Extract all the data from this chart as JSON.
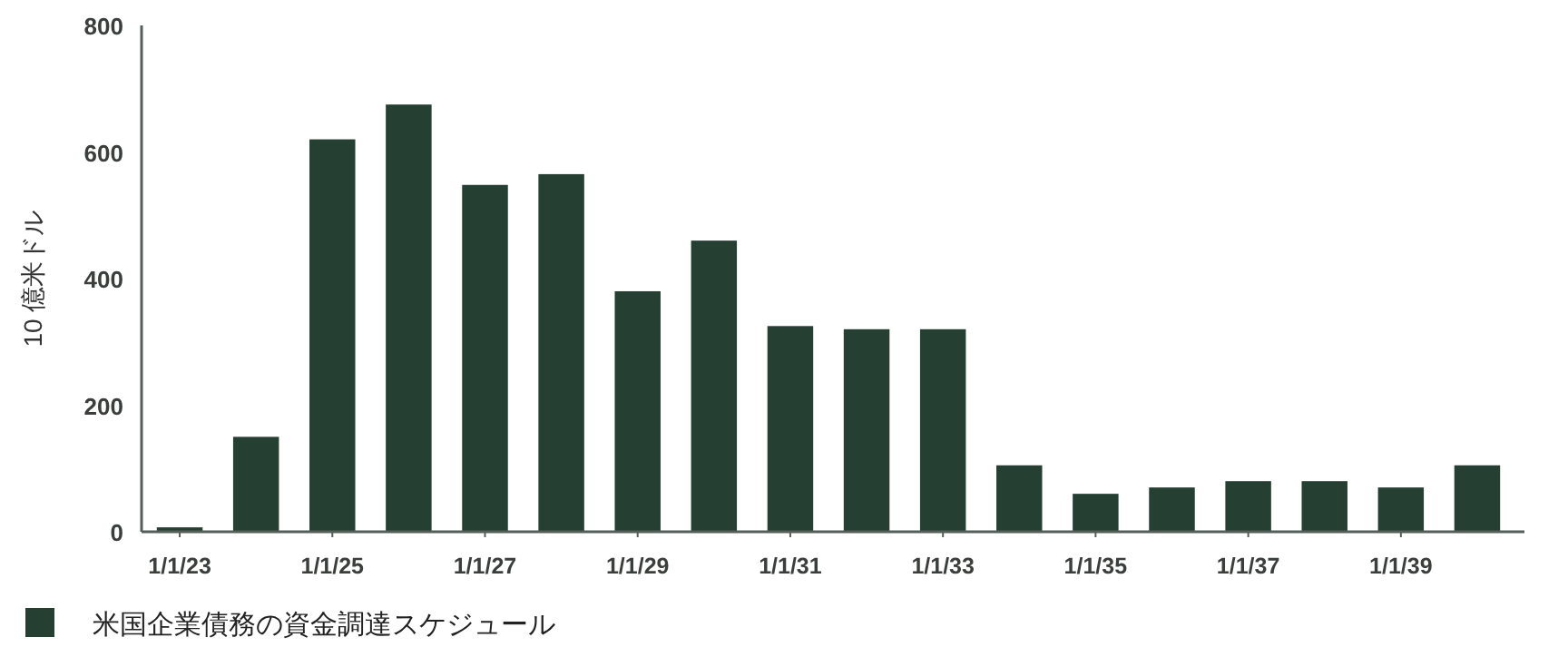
{
  "chart_data": {
    "type": "bar",
    "ylabel": "10 億米ドル",
    "categories": [
      "1/1/23",
      null,
      "1/1/25",
      null,
      "1/1/27",
      null,
      "1/1/29",
      null,
      "1/1/31",
      null,
      "1/1/33",
      null,
      "1/1/35",
      null,
      "1/1/37",
      null,
      "1/1/39",
      null
    ],
    "series": [
      {
        "name": "米国企業債務の資金調達スケジュール",
        "color": "#263f33",
        "values": [
          7,
          150,
          620,
          675,
          548,
          565,
          380,
          460,
          325,
          320,
          320,
          105,
          60,
          70,
          80,
          80,
          70,
          105
        ]
      }
    ],
    "ylim": [
      0,
      800
    ],
    "yticks": [
      0,
      200,
      400,
      600,
      800
    ],
    "grid": false,
    "legend": "bottom left"
  }
}
